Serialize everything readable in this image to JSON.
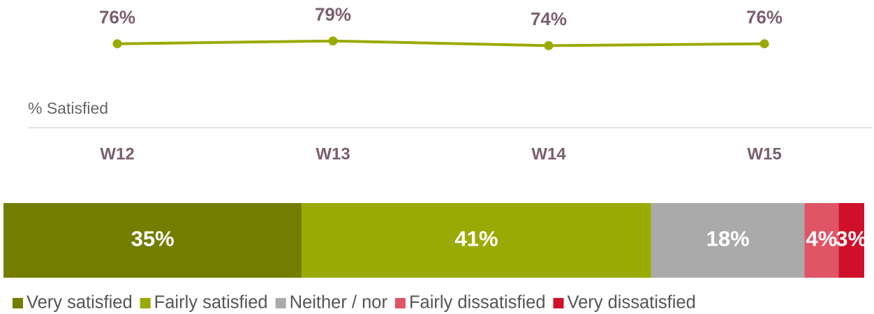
{
  "chart_data": [
    {
      "type": "line",
      "categories": [
        "W12",
        "W13",
        "W14",
        "W15"
      ],
      "series": [
        {
          "name": "% Satisfied",
          "color": "#9aaa05",
          "values": [
            76,
            79,
            74,
            76
          ],
          "value_labels": [
            "76%",
            "79%",
            "74%",
            "76%"
          ]
        }
      ]
    },
    {
      "type": "bar",
      "orientation": "horizontal",
      "stacked": true,
      "legend": "bottom",
      "series": [
        {
          "name": "Very satisfied",
          "color": "#737d00",
          "values": [
            35
          ],
          "value_labels": [
            "35%"
          ]
        },
        {
          "name": "Fairly satisfied",
          "color": "#9aaa05",
          "values": [
            41
          ],
          "value_labels": [
            "41%"
          ]
        },
        {
          "name": "Neither / nor",
          "color": "#aaaaaa",
          "values": [
            18
          ],
          "value_labels": [
            "18%"
          ]
        },
        {
          "name": "Fairly dissatisfied",
          "color": "#e05566",
          "values": [
            4
          ],
          "value_labels": [
            "4%"
          ]
        },
        {
          "name": "Very dissatisfied",
          "color": "#d0102a",
          "values": [
            3
          ],
          "value_labels": [
            "3%"
          ]
        }
      ]
    }
  ]
}
